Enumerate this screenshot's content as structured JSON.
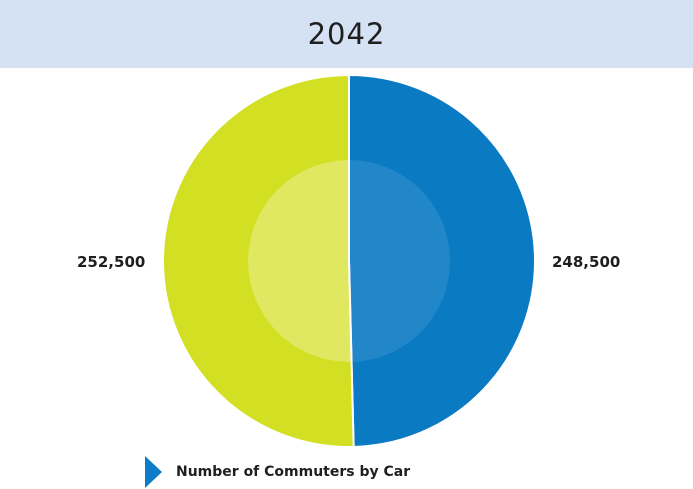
{
  "chart_data": {
    "type": "pie",
    "title": "2042",
    "slices": [
      {
        "label_text": "252,500",
        "value": 252500,
        "color": "#d3df23"
      },
      {
        "label_text": "248,500",
        "value": 248500,
        "color": "#0a7ac3"
      }
    ],
    "legend": {
      "entries": [
        {
          "label": "Number of Commuters by Car",
          "color": "#0c7dc6"
        }
      ],
      "placement": "bottom-left"
    }
  }
}
